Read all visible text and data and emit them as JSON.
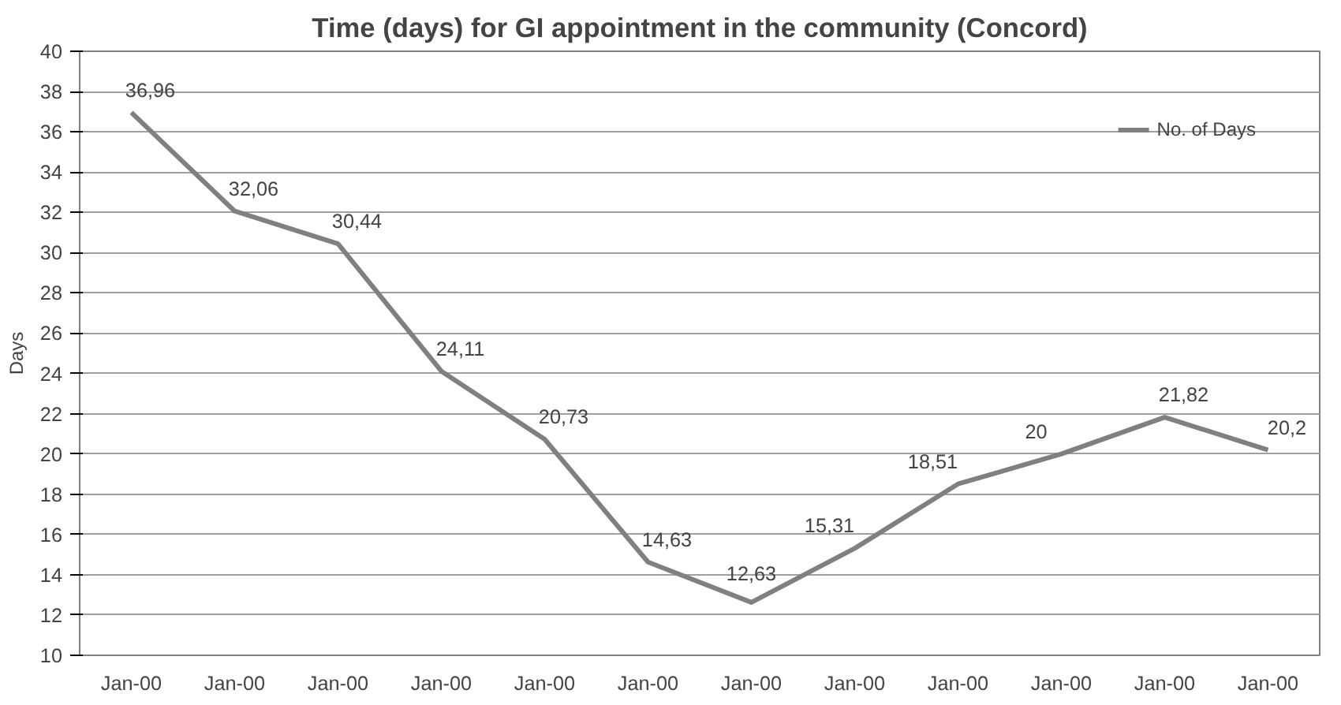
{
  "chart_data": {
    "type": "line",
    "title": "Time (days) for GI appointment in the community (Concord)",
    "ylabel": "Days",
    "categories": [
      "Jan-00",
      "Jan-00",
      "Jan-00",
      "Jan-00",
      "Jan-00",
      "Jan-00",
      "Jan-00",
      "Jan-00",
      "Jan-00",
      "Jan-00",
      "Jan-00",
      "Jan-00"
    ],
    "series": [
      {
        "name": "No. of Days",
        "color": "#808080",
        "values": [
          36.96,
          32.06,
          30.44,
          24.11,
          20.73,
          14.63,
          12.63,
          15.31,
          18.51,
          20,
          21.82,
          20.2
        ],
        "value_labels": [
          "36,96",
          "32,06",
          "30,44",
          "24,11",
          "20,73",
          "14,63",
          "12,63",
          "15,31",
          "18,51",
          "20",
          "21,82",
          "20,2"
        ]
      }
    ],
    "ylim": [
      10,
      40
    ],
    "yticks": [
      10,
      12,
      14,
      16,
      18,
      20,
      22,
      24,
      26,
      28,
      30,
      32,
      34,
      36,
      38,
      40
    ],
    "grid": "y",
    "legend": "top right",
    "marker": "none",
    "line_style": "solid"
  }
}
